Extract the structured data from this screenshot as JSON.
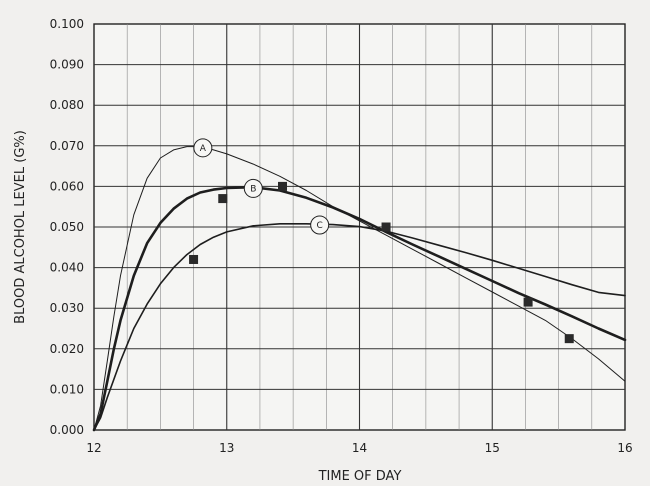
{
  "chart_data": {
    "type": "line",
    "title": "",
    "xlabel": "TIME OF DAY",
    "ylabel": "BLOOD ALCOHOL LEVEL (G%)",
    "xlim": [
      12,
      16
    ],
    "ylim": [
      0,
      0.1
    ],
    "x_ticks": [
      "12",
      "13",
      "14",
      "15",
      "16"
    ],
    "y_ticks": [
      "0.000",
      "0.010",
      "0.020",
      "0.030",
      "0.040",
      "0.050",
      "0.060",
      "0.070",
      "0.080",
      "0.090",
      "0.100"
    ],
    "grid": true,
    "series": [
      {
        "name": "A",
        "label_at": [
          12.82,
          0.0695
        ],
        "points": [
          [
            12,
            0
          ],
          [
            12.05,
            0.006
          ],
          [
            12.1,
            0.017
          ],
          [
            12.15,
            0.028
          ],
          [
            12.2,
            0.038
          ],
          [
            12.3,
            0.053
          ],
          [
            12.4,
            0.062
          ],
          [
            12.5,
            0.067
          ],
          [
            12.6,
            0.069
          ],
          [
            12.7,
            0.0698
          ],
          [
            12.8,
            0.0698
          ],
          [
            12.9,
            0.069
          ],
          [
            13,
            0.068
          ],
          [
            13.2,
            0.0655
          ],
          [
            13.4,
            0.0625
          ],
          [
            13.6,
            0.059
          ],
          [
            13.8,
            0.055
          ],
          [
            14,
            0.0515
          ],
          [
            14.2,
            0.048
          ],
          [
            14.4,
            0.0445
          ],
          [
            14.6,
            0.041
          ],
          [
            14.8,
            0.0375
          ],
          [
            15,
            0.034
          ],
          [
            15.2,
            0.0305
          ],
          [
            15.4,
            0.027
          ],
          [
            15.6,
            0.0225
          ],
          [
            15.8,
            0.0175
          ],
          [
            16,
            0.012
          ]
        ]
      },
      {
        "name": "B",
        "label_at": [
          13.2,
          0.0595
        ],
        "points": [
          [
            12,
            0
          ],
          [
            12.05,
            0.004
          ],
          [
            12.1,
            0.012
          ],
          [
            12.15,
            0.02
          ],
          [
            12.2,
            0.027
          ],
          [
            12.3,
            0.038
          ],
          [
            12.4,
            0.046
          ],
          [
            12.5,
            0.051
          ],
          [
            12.6,
            0.0545
          ],
          [
            12.7,
            0.057
          ],
          [
            12.8,
            0.0585
          ],
          [
            12.9,
            0.0592
          ],
          [
            13,
            0.0596
          ],
          [
            13.2,
            0.0598
          ],
          [
            13.4,
            0.059
          ],
          [
            13.6,
            0.0572
          ],
          [
            13.8,
            0.0548
          ],
          [
            14,
            0.052
          ],
          [
            14.2,
            0.0488
          ],
          [
            14.4,
            0.0457
          ],
          [
            14.6,
            0.0427
          ],
          [
            14.8,
            0.0397
          ],
          [
            15,
            0.0367
          ],
          [
            15.2,
            0.0337
          ],
          [
            15.4,
            0.0309
          ],
          [
            15.6,
            0.028
          ],
          [
            15.8,
            0.025
          ],
          [
            16,
            0.0222
          ]
        ]
      },
      {
        "name": "C",
        "label_at": [
          13.7,
          0.0505
        ],
        "points": [
          [
            12,
            0
          ],
          [
            12.05,
            0.003
          ],
          [
            12.1,
            0.008
          ],
          [
            12.2,
            0.017
          ],
          [
            12.3,
            0.025
          ],
          [
            12.4,
            0.031
          ],
          [
            12.5,
            0.036
          ],
          [
            12.6,
            0.04
          ],
          [
            12.7,
            0.0432
          ],
          [
            12.8,
            0.0457
          ],
          [
            12.9,
            0.0475
          ],
          [
            13,
            0.0488
          ],
          [
            13.2,
            0.0503
          ],
          [
            13.4,
            0.0508
          ],
          [
            13.6,
            0.0508
          ],
          [
            13.8,
            0.0506
          ],
          [
            14,
            0.0501
          ],
          [
            14.2,
            0.049
          ],
          [
            14.4,
            0.0473
          ],
          [
            14.6,
            0.0455
          ],
          [
            14.8,
            0.0437
          ],
          [
            15,
            0.0418
          ],
          [
            15.2,
            0.0398
          ],
          [
            15.4,
            0.0378
          ],
          [
            15.6,
            0.0358
          ],
          [
            15.8,
            0.0339
          ],
          [
            16,
            0.0331
          ]
        ]
      }
    ],
    "measured_points": [
      [
        12.75,
        0.042
      ],
      [
        12.97,
        0.057
      ],
      [
        13.42,
        0.06
      ],
      [
        14.2,
        0.05
      ],
      [
        15.27,
        0.0315
      ],
      [
        15.58,
        0.0225
      ]
    ]
  }
}
